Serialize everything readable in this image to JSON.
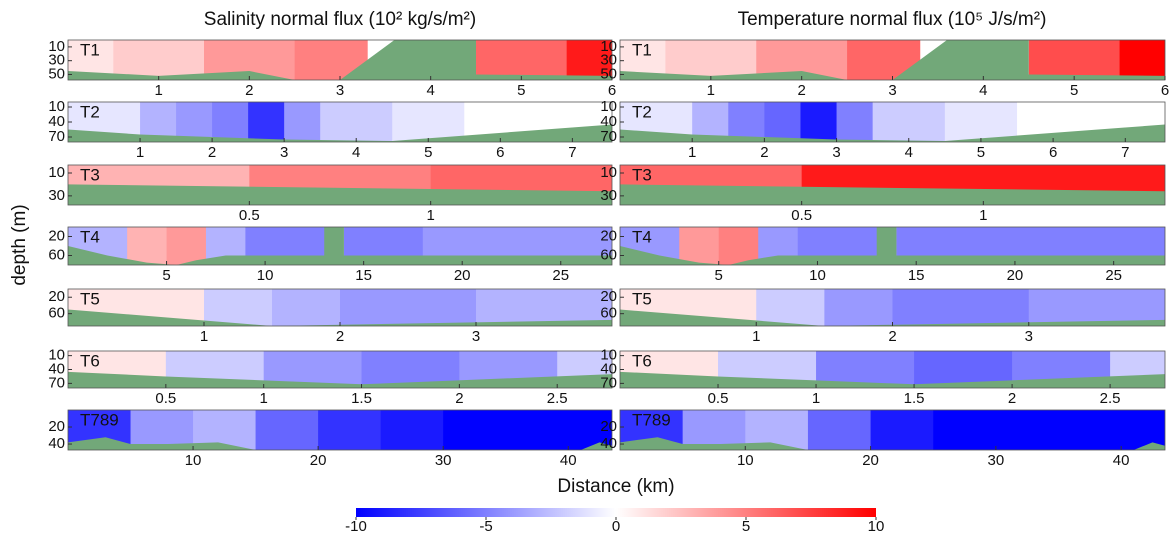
{
  "chart_data": {
    "type": "heatmap",
    "titles": [
      "Salinity normal flux (10² kg/s/m²)",
      "Temperature normal flux (10⁵ J/s/m²)"
    ],
    "y_label": "depth (m)",
    "x_label": "Distance (km)",
    "bottom_color": "#72a879",
    "colorbar": {
      "lim": [
        -10,
        10
      ],
      "ticks": [
        -10,
        -5,
        0,
        5,
        10
      ],
      "colors": [
        "#0000ff",
        "#ffffff",
        "#ff0000"
      ]
    },
    "transects": [
      {
        "name": "T1",
        "xlim": [
          0,
          6
        ],
        "xticks": [
          1,
          2,
          3,
          4,
          5,
          6
        ],
        "ylim": [
          0,
          58
        ],
        "yticks": [
          10,
          30,
          50
        ],
        "x_edges": [
          0,
          0.5,
          1.5,
          2.5,
          3.3,
          4.5,
          5.5,
          6
        ],
        "salinity": [
          1,
          2,
          4,
          5,
          null,
          6,
          9
        ],
        "temperature": [
          1,
          2,
          4,
          6,
          null,
          7,
          10
        ],
        "bottom_x": [
          0,
          1,
          2,
          2.5,
          3,
          3.6,
          4.5,
          4.5,
          6
        ],
        "bottom_depth": [
          45,
          52,
          45,
          58,
          58,
          0,
          0,
          50,
          52
        ]
      },
      {
        "name": "T2",
        "xlim": [
          0,
          7.55
        ],
        "xticks": [
          1,
          2,
          3,
          4,
          5,
          6,
          7
        ],
        "ylim": [
          0,
          80
        ],
        "yticks": [
          10,
          40,
          70
        ],
        "x_edges": [
          0,
          1,
          1.5,
          2,
          2.5,
          3,
          3.5,
          4.5,
          5.5,
          7.55
        ],
        "salinity": [
          -1,
          -3,
          -4,
          -5,
          -8,
          -4,
          -2,
          -1,
          0
        ],
        "temperature": [
          -1,
          -3,
          -5,
          -6,
          -9,
          -5,
          -2,
          -1,
          0
        ],
        "bottom_x": [
          0,
          1,
          3,
          4.5,
          7.55
        ],
        "bottom_depth": [
          55,
          65,
          75,
          78,
          45
        ]
      },
      {
        "name": "T3",
        "xlim": [
          0,
          1.5
        ],
        "xticks": [
          0.5,
          1
        ],
        "ylim": [
          3,
          38
        ],
        "yticks": [
          10,
          30
        ],
        "x_edges": [
          0,
          0.5,
          1,
          1.5
        ],
        "salinity": [
          3,
          5,
          6
        ],
        "temperature": [
          6,
          9,
          9
        ],
        "bottom_x": [
          0,
          1.5
        ],
        "bottom_depth": [
          20,
          26
        ]
      },
      {
        "name": "T4",
        "xlim": [
          0,
          27.6
        ],
        "xticks": [
          5,
          10,
          15,
          20,
          25
        ],
        "ylim": [
          0,
          80
        ],
        "yticks": [
          20,
          60
        ],
        "x_edges": [
          0,
          3,
          5,
          7,
          9,
          13,
          14,
          18,
          27.6
        ],
        "salinity": [
          -3,
          3,
          4,
          -3,
          -5,
          null,
          -5,
          -4
        ],
        "temperature": [
          -4,
          4,
          5,
          -4,
          -5,
          null,
          -5,
          -5
        ],
        "bottom_x": [
          0,
          2,
          4,
          5.5,
          6.5,
          8,
          13,
          13,
          14,
          14,
          27.6
        ],
        "bottom_depth": [
          40,
          60,
          75,
          80,
          70,
          60,
          60,
          0,
          0,
          60,
          60
        ]
      },
      {
        "name": "T5",
        "xlim": [
          0,
          4
        ],
        "xticks": [
          1,
          2,
          3
        ],
        "ylim": [
          0,
          90
        ],
        "yticks": [
          20,
          60
        ],
        "x_edges": [
          0,
          1,
          1.5,
          2,
          2.5,
          3,
          4
        ],
        "salinity": [
          1,
          -2,
          -3,
          -4,
          -4,
          -3
        ],
        "temperature": [
          1,
          -2,
          -4,
          -5,
          -5,
          -4
        ],
        "bottom_x": [
          0,
          1.5,
          4
        ],
        "bottom_depth": [
          50,
          90,
          75
        ]
      },
      {
        "name": "T6",
        "xlim": [
          0,
          2.78
        ],
        "xticks": [
          0.5,
          1,
          1.5,
          2,
          2.5
        ],
        "ylim": [
          0,
          80
        ],
        "yticks": [
          10,
          40,
          70
        ],
        "x_edges": [
          0,
          0.5,
          1,
          1.5,
          2,
          2.5,
          2.78
        ],
        "salinity": [
          1,
          -2,
          -4,
          -5,
          -4,
          -2
        ],
        "temperature": [
          1,
          -2,
          -5,
          -6,
          -5,
          -2
        ],
        "bottom_x": [
          0,
          0.5,
          1.5,
          2.78
        ],
        "bottom_depth": [
          45,
          55,
          72,
          50
        ]
      },
      {
        "name": "T789",
        "xlim": [
          0,
          43.5
        ],
        "xticks": [
          10,
          20,
          30,
          40
        ],
        "ylim": [
          0,
          47
        ],
        "yticks": [
          20,
          40
        ],
        "x_edges": [
          0,
          5,
          10,
          15,
          20,
          25,
          30,
          43.5
        ],
        "salinity": [
          -8,
          -4,
          -3,
          -6,
          -8,
          -9,
          -10
        ],
        "temperature": [
          -8,
          -4,
          -3,
          -6,
          -9,
          -10,
          -10
        ],
        "bottom_x": [
          0,
          3,
          5,
          8,
          12,
          15,
          41,
          42.5,
          43.5
        ],
        "bottom_depth": [
          38,
          32,
          40,
          40,
          38,
          47,
          47,
          38,
          42
        ]
      }
    ]
  }
}
